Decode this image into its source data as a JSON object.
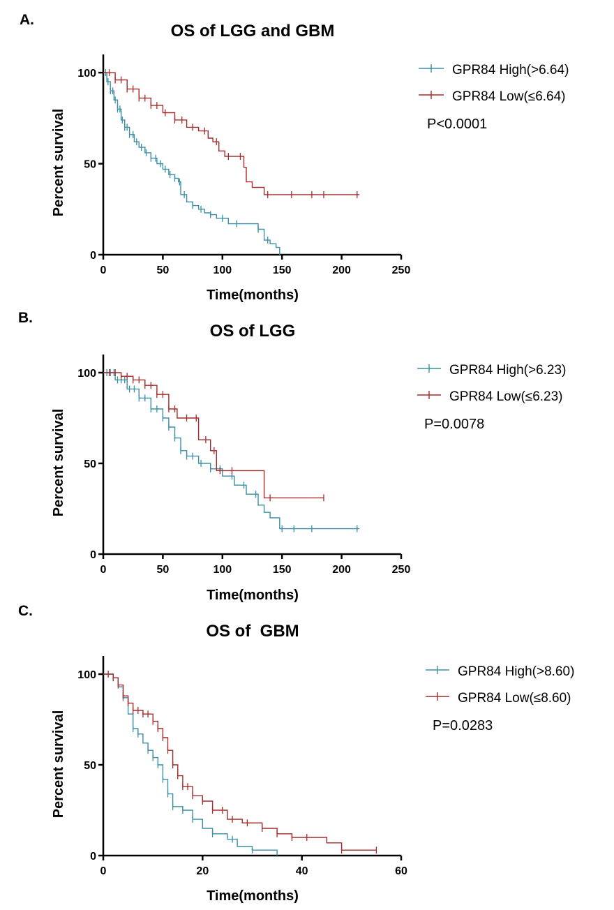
{
  "chart_data": [
    {
      "type": "line",
      "panel_label": "A.",
      "title": "OS of LGG and GBM",
      "xlabel": "Time(months)",
      "ylabel": "Percent survival",
      "xlim": [
        0,
        250
      ],
      "ylim": [
        0,
        110
      ],
      "xticks": [
        0,
        50,
        100,
        150,
        200,
        250
      ],
      "yticks": [
        0,
        50,
        100
      ],
      "p_value": "P<0.0001",
      "legend_position": "top-right",
      "series": [
        {
          "name": "GPR84 High(>6.64)",
          "color": "#3a8fa6",
          "x": [
            0,
            3,
            6,
            9,
            12,
            15,
            18,
            22,
            26,
            30,
            35,
            40,
            45,
            50,
            55,
            60,
            63,
            65,
            70,
            75,
            80,
            85,
            90,
            95,
            100,
            105,
            110,
            120,
            125,
            130,
            135,
            140,
            145,
            148
          ],
          "y": [
            100,
            95,
            90,
            85,
            80,
            74,
            70,
            66,
            62,
            59,
            56,
            53,
            50,
            47,
            44,
            42,
            40,
            33,
            29,
            27,
            25,
            23,
            22,
            20,
            20,
            17,
            17,
            17,
            17,
            14,
            8,
            6,
            4,
            0
          ],
          "censor_x": [
            2,
            4,
            6,
            8,
            10,
            12,
            14,
            16,
            18,
            20,
            22,
            25,
            28,
            32,
            36,
            40,
            44,
            48,
            52,
            56,
            60,
            64,
            68,
            75,
            82,
            90,
            100,
            112,
            130,
            138
          ]
        },
        {
          "name": "GPR84 Low(≤6.64)",
          "color": "#a52a2a",
          "x": [
            0,
            10,
            20,
            30,
            40,
            50,
            60,
            70,
            80,
            88,
            92,
            97,
            102,
            112,
            118,
            120,
            125,
            135,
            215
          ],
          "y": [
            100,
            96,
            91,
            86,
            82,
            78,
            74,
            70,
            68,
            64,
            62,
            57,
            54,
            54,
            48,
            40,
            37,
            33,
            33
          ],
          "censor_x": [
            5,
            10,
            15,
            20,
            25,
            30,
            35,
            40,
            45,
            52,
            60,
            66,
            75,
            85,
            95,
            105,
            115,
            138,
            158,
            175,
            185,
            213
          ]
        }
      ]
    },
    {
      "type": "line",
      "panel_label": "B.",
      "title": "OS of LGG",
      "xlabel": "Time(months)",
      "ylabel": "Percent survival",
      "xlim": [
        0,
        250
      ],
      "ylim": [
        0,
        110
      ],
      "xticks": [
        0,
        50,
        100,
        150,
        200,
        250
      ],
      "yticks": [
        0,
        50,
        100
      ],
      "p_value": "P=0.0078",
      "legend_position": "top-right",
      "series": [
        {
          "name": "GPR84 High(>6.23)",
          "color": "#3a8fa6",
          "x": [
            0,
            10,
            20,
            30,
            40,
            50,
            55,
            60,
            65,
            70,
            80,
            90,
            100,
            110,
            120,
            130,
            135,
            140,
            148,
            215
          ],
          "y": [
            100,
            96,
            91,
            86,
            80,
            75,
            70,
            64,
            57,
            54,
            50,
            47,
            43,
            38,
            33,
            27,
            23,
            20,
            14,
            14
          ],
          "censor_x": [
            3,
            6,
            9,
            12,
            15,
            18,
            22,
            26,
            30,
            35,
            40,
            45,
            50,
            55,
            60,
            65,
            70,
            75,
            82,
            90,
            98,
            108,
            118,
            128,
            150,
            160,
            175,
            213
          ]
        },
        {
          "name": "GPR84 Low(≤6.23)",
          "color": "#a52a2a",
          "x": [
            0,
            15,
            25,
            35,
            45,
            55,
            62,
            70,
            80,
            90,
            95,
            100,
            115,
            135,
            185
          ],
          "y": [
            100,
            98,
            96,
            93,
            88,
            80,
            75,
            75,
            63,
            57,
            46,
            46,
            46,
            31,
            31
          ],
          "censor_x": [
            5,
            10,
            15,
            20,
            25,
            30,
            35,
            40,
            45,
            50,
            55,
            60,
            70,
            78,
            86,
            93,
            98,
            108,
            140,
            185
          ]
        }
      ]
    },
    {
      "type": "line",
      "panel_label": "C.",
      "title": "OS of  GBM",
      "xlabel": "Time(months)",
      "ylabel": "Percent survival",
      "xlim": [
        0,
        60
      ],
      "ylim": [
        0,
        110
      ],
      "xticks": [
        0,
        20,
        40,
        60
      ],
      "yticks": [
        0,
        50,
        100
      ],
      "p_value": "P=0.0283",
      "legend_position": "top-right",
      "series": [
        {
          "name": "GPR84 High(>8.60)",
          "color": "#3a8fa6",
          "x": [
            0,
            2,
            3,
            4,
            5,
            6,
            7,
            8,
            9,
            10,
            11,
            12,
            13,
            14,
            16,
            18,
            20,
            22,
            25,
            27,
            30,
            35
          ],
          "y": [
            100,
            98,
            93,
            87,
            78,
            70,
            67,
            62,
            58,
            54,
            50,
            42,
            34,
            27,
            25,
            20,
            15,
            12,
            9,
            5,
            3,
            0
          ],
          "censor_x": [
            2,
            4,
            6,
            7,
            9,
            10,
            11,
            12,
            13,
            14,
            16,
            18,
            22,
            26,
            30
          ]
        },
        {
          "name": "GPR84 Low(≤8.60)",
          "color": "#a52a2a",
          "x": [
            0,
            2,
            3,
            4,
            5,
            6,
            7,
            8,
            10,
            11,
            12,
            13,
            14,
            15,
            16,
            18,
            20,
            22,
            25,
            28,
            32,
            35,
            38,
            41,
            45,
            48,
            55
          ],
          "y": [
            100,
            98,
            94,
            88,
            84,
            80,
            80,
            78,
            74,
            70,
            65,
            58,
            50,
            44,
            38,
            33,
            30,
            25,
            20,
            18,
            15,
            12,
            10,
            10,
            7,
            3,
            3
          ],
          "censor_x": [
            1,
            2,
            3,
            4,
            5,
            6,
            7,
            8,
            9,
            10,
            11,
            12,
            13,
            14,
            15,
            16,
            17,
            18,
            20,
            22,
            24,
            26,
            29,
            32,
            35,
            38,
            41,
            48,
            55
          ]
        }
      ]
    }
  ]
}
